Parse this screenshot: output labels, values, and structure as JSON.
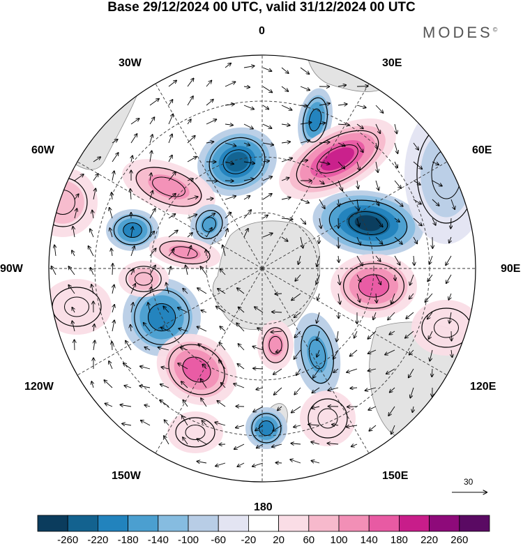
{
  "header": {
    "title": "Base 29/12/2024 00 UTC, valid 31/12/2024 00 UTC",
    "brand": "MODES",
    "brand_mark": "©"
  },
  "map": {
    "projection": "south-polar-stereographic",
    "longitude_labels": [
      {
        "id": "0",
        "text": "0"
      },
      {
        "id": "30E",
        "text": "30E"
      },
      {
        "id": "60E",
        "text": "60E"
      },
      {
        "id": "90E",
        "text": "90E"
      },
      {
        "id": "120E",
        "text": "120E"
      },
      {
        "id": "150E",
        "text": "150E"
      },
      {
        "id": "180",
        "text": "180"
      },
      {
        "id": "150W",
        "text": "150W"
      },
      {
        "id": "120W",
        "text": "120W"
      },
      {
        "id": "90W",
        "text": "90W"
      },
      {
        "id": "60W",
        "text": "60W"
      },
      {
        "id": "30W",
        "text": "30W"
      }
    ],
    "reference_vector": "30",
    "colors": {
      "land": "#e3e3e3",
      "coast": "#8a8a8a",
      "grid": "#333333"
    }
  },
  "colorbar": {
    "ticks": [
      "-260",
      "-220",
      "-180",
      "-140",
      "-100",
      "-60",
      "-20",
      "20",
      "60",
      "100",
      "140",
      "180",
      "220",
      "260"
    ],
    "colors": [
      "#0b3c5d",
      "#13628f",
      "#2283bd",
      "#4b9fd0",
      "#86bce0",
      "#b8cde6",
      "#e3e4f2",
      "#ffffff",
      "#fadde6",
      "#f7b9cc",
      "#f28fb6",
      "#e85aa3",
      "#c81d8a",
      "#8e0a7a",
      "#5a0a63"
    ]
  }
}
